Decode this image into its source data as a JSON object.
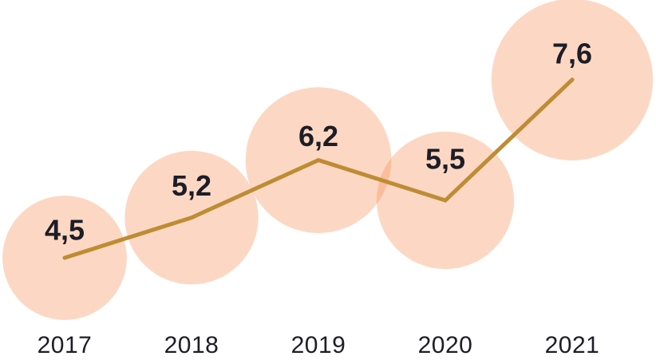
{
  "chart_data": {
    "type": "line",
    "subtype": "bubble-line",
    "categories": [
      "2017",
      "2018",
      "2019",
      "2020",
      "2021"
    ],
    "values": [
      4.5,
      5.2,
      6.2,
      5.5,
      7.6
    ],
    "point_labels": [
      "4,5",
      "5,2",
      "6,2",
      "5,5",
      "7,6"
    ],
    "title": "",
    "xlabel": "",
    "ylabel": "",
    "decimal_separator": ",",
    "legend_position": "none",
    "grid": false,
    "axes_visible": false,
    "bubble_size_encodes_value": true,
    "colors": {
      "line": "#BE8C33",
      "bubble_fill": "#F69056",
      "bubble_opacity": 0.35,
      "value_label_text": "#1D1D26",
      "axis_text": "#1D1D26",
      "background": "#FFFFFF"
    }
  }
}
